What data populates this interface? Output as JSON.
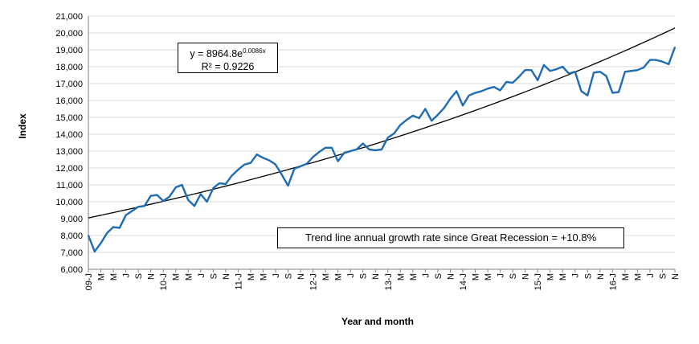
{
  "chart_data": {
    "type": "line",
    "xlabel": "Year and month",
    "ylabel": "Index",
    "ylim": [
      6000,
      21000
    ],
    "yticks": [
      "6,000",
      "7,000",
      "8,000",
      "9,000",
      "10,000",
      "11,000",
      "12,000",
      "13,000",
      "14,000",
      "15,000",
      "16,000",
      "17,000",
      "18,000",
      "19,000",
      "20,000",
      "21,000"
    ],
    "xticks": [
      "09-J",
      "M",
      "M",
      "J",
      "S",
      "N",
      "10-J",
      "M",
      "M",
      "J",
      "S",
      "N",
      "11-J",
      "M",
      "M",
      "J",
      "S",
      "N",
      "12-J",
      "M",
      "M",
      "J",
      "S",
      "N",
      "13-J",
      "M",
      "M",
      "J",
      "S",
      "N",
      "14-J",
      "M",
      "M",
      "J",
      "S",
      "N",
      "15-J",
      "M",
      "M",
      "J",
      "S",
      "N",
      "16-J",
      "M",
      "M",
      "J",
      "S",
      "N"
    ],
    "grid": "horizontal",
    "series": [
      {
        "color": "#1f6cb4",
        "values": [
          8000,
          7050,
          7550,
          8150,
          8500,
          8450,
          9200,
          9450,
          9700,
          9750,
          10350,
          10400,
          10050,
          10300,
          10850,
          11000,
          10100,
          9750,
          10450,
          10000,
          10800,
          11100,
          11050,
          11550,
          11900,
          12200,
          12300,
          12800,
          12600,
          12450,
          12200,
          11600,
          10950,
          11950,
          12100,
          12250,
          12650,
          12950,
          13200,
          13200,
          12400,
          12900,
          13000,
          13100,
          13450,
          13100,
          13050,
          13100,
          13800,
          14050,
          14550,
          14850,
          15100,
          14950,
          15500,
          14800,
          15150,
          15550,
          16100,
          16550,
          15700,
          16300,
          16450,
          16550,
          16700,
          16800,
          16600,
          17100,
          17050,
          17400,
          17800,
          17800,
          17200,
          18100,
          17750,
          17850,
          18000,
          17600,
          17700,
          16550,
          16300,
          17650,
          17700,
          17450,
          16450,
          16500,
          17700,
          17750,
          17800,
          17950,
          18400,
          18400,
          18300,
          18150,
          19150
        ]
      },
      {
        "type": "trendline",
        "color": "#000000",
        "a": 8964.8,
        "b": 0.0086
      }
    ],
    "annotations": {
      "equation_prefix": "y = 8964.8e",
      "equation_exponent": "0.0086x",
      "r_squared": "R² = 0.9226",
      "note": "Trend line annual growth rate since Great Recession = +10.8%"
    }
  }
}
